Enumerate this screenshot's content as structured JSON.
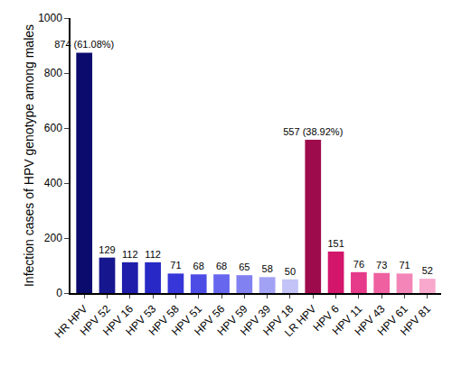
{
  "chart_data": {
    "type": "bar",
    "y_label": "Infection cases of HPV genotype among males",
    "categories": [
      "HR HPV",
      "HPV 52",
      "HPV 16",
      "HPV 53",
      "HPV 58",
      "HPV 51",
      "HPV 56",
      "HPV 59",
      "HPV 39",
      "HPV 18",
      "LR HPV",
      "HPV 6",
      "HPV 11",
      "HPV 43",
      "HPV 61",
      "HPV 81"
    ],
    "values": [
      874,
      129,
      112,
      112,
      71,
      68,
      68,
      65,
      58,
      50,
      557,
      151,
      76,
      73,
      71,
      52
    ],
    "value_labels": [
      "874 (61.08%)",
      "129",
      "112",
      "112",
      "71",
      "68",
      "68",
      "65",
      "58",
      "50",
      "557 (38.92%)",
      "151",
      "76",
      "73",
      "71",
      "52"
    ],
    "colors": [
      "#0b0b6e",
      "#16168f",
      "#1e1eab",
      "#2828c6",
      "#3737d9",
      "#4d4de6",
      "#6666ee",
      "#8181f2",
      "#a2a2f5",
      "#c3c3f8",
      "#9e0b4c",
      "#d4156c",
      "#e63a8a",
      "#ee60a0",
      "#f385b8",
      "#f7a8cc"
    ],
    "ylim": [
      0,
      1000
    ],
    "yticks": [
      0,
      200,
      400,
      600,
      800,
      1000
    ],
    "grid": false,
    "data_labels": true
  }
}
